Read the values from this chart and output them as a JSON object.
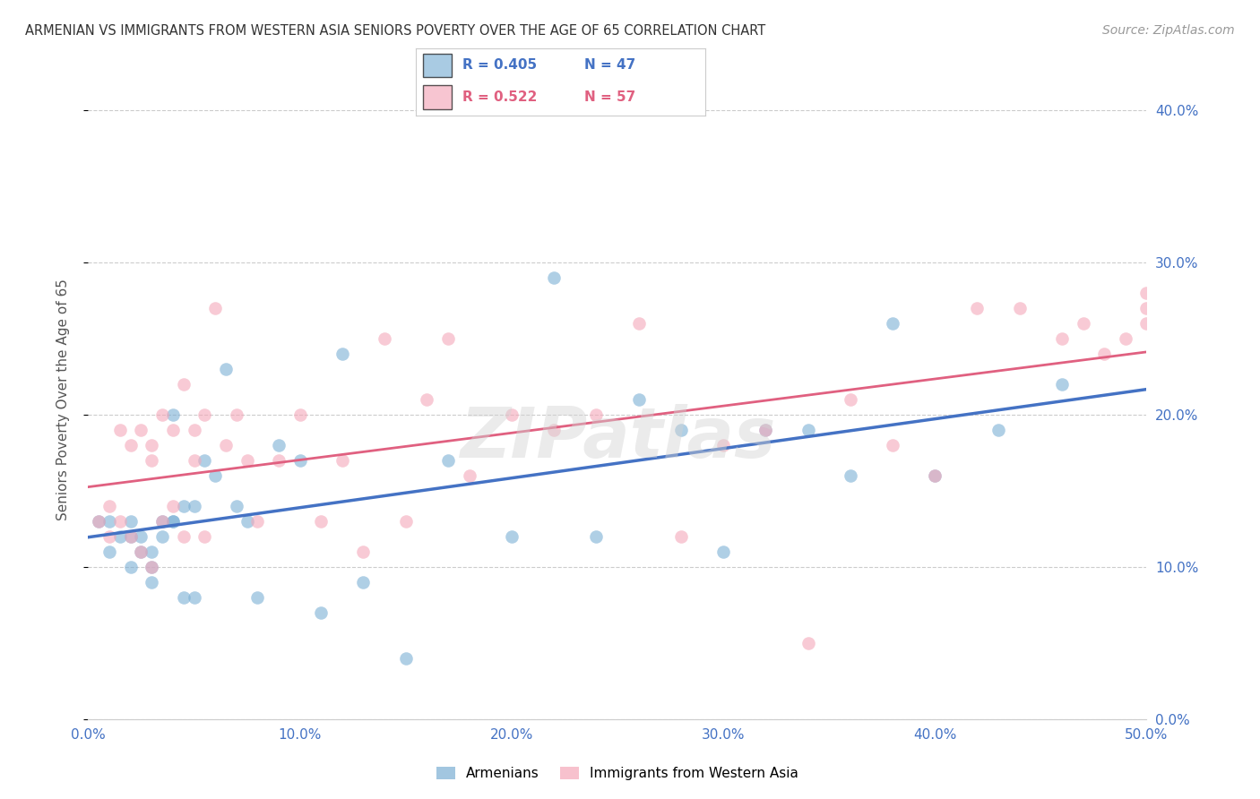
{
  "title": "ARMENIAN VS IMMIGRANTS FROM WESTERN ASIA SENIORS POVERTY OVER THE AGE OF 65 CORRELATION CHART",
  "source": "Source: ZipAtlas.com",
  "ylabel": "Seniors Poverty Over the Age of 65",
  "xlim": [
    0.0,
    0.5
  ],
  "ylim": [
    0.0,
    0.42
  ],
  "yticks": [
    0.0,
    0.1,
    0.2,
    0.3,
    0.4
  ],
  "xticks": [
    0.0,
    0.1,
    0.2,
    0.3,
    0.4,
    0.5
  ],
  "legend_labels": [
    "Armenians",
    "Immigrants from Western Asia"
  ],
  "legend_R": [
    "R = 0.405",
    "R = 0.522"
  ],
  "legend_N": [
    "N = 47",
    "N = 57"
  ],
  "blue_color": "#7BAFD4",
  "pink_color": "#F4A7B9",
  "blue_line_color": "#4472C4",
  "pink_line_color": "#E06080",
  "watermark": "ZIPatlas",
  "blue_scatter_x": [
    0.005,
    0.01,
    0.01,
    0.015,
    0.02,
    0.02,
    0.02,
    0.025,
    0.025,
    0.03,
    0.03,
    0.03,
    0.035,
    0.035,
    0.04,
    0.04,
    0.04,
    0.045,
    0.045,
    0.05,
    0.05,
    0.055,
    0.06,
    0.065,
    0.07,
    0.075,
    0.08,
    0.09,
    0.1,
    0.11,
    0.12,
    0.13,
    0.15,
    0.17,
    0.2,
    0.22,
    0.24,
    0.26,
    0.28,
    0.3,
    0.32,
    0.34,
    0.36,
    0.38,
    0.4,
    0.43,
    0.46
  ],
  "blue_scatter_y": [
    0.13,
    0.13,
    0.11,
    0.12,
    0.13,
    0.12,
    0.1,
    0.12,
    0.11,
    0.11,
    0.1,
    0.09,
    0.12,
    0.13,
    0.2,
    0.13,
    0.13,
    0.14,
    0.08,
    0.14,
    0.08,
    0.17,
    0.16,
    0.23,
    0.14,
    0.13,
    0.08,
    0.18,
    0.17,
    0.07,
    0.24,
    0.09,
    0.04,
    0.17,
    0.12,
    0.29,
    0.12,
    0.21,
    0.19,
    0.11,
    0.19,
    0.19,
    0.16,
    0.26,
    0.16,
    0.19,
    0.22
  ],
  "pink_scatter_x": [
    0.005,
    0.01,
    0.01,
    0.015,
    0.015,
    0.02,
    0.02,
    0.025,
    0.025,
    0.03,
    0.03,
    0.03,
    0.035,
    0.035,
    0.04,
    0.04,
    0.045,
    0.045,
    0.05,
    0.05,
    0.055,
    0.055,
    0.06,
    0.065,
    0.07,
    0.075,
    0.08,
    0.09,
    0.1,
    0.11,
    0.12,
    0.13,
    0.14,
    0.15,
    0.16,
    0.17,
    0.18,
    0.2,
    0.22,
    0.24,
    0.26,
    0.28,
    0.3,
    0.32,
    0.34,
    0.36,
    0.38,
    0.4,
    0.42,
    0.44,
    0.46,
    0.47,
    0.48,
    0.49,
    0.5,
    0.5,
    0.5
  ],
  "pink_scatter_y": [
    0.13,
    0.14,
    0.12,
    0.19,
    0.13,
    0.18,
    0.12,
    0.19,
    0.11,
    0.18,
    0.17,
    0.1,
    0.2,
    0.13,
    0.19,
    0.14,
    0.22,
    0.12,
    0.19,
    0.17,
    0.2,
    0.12,
    0.27,
    0.18,
    0.2,
    0.17,
    0.13,
    0.17,
    0.2,
    0.13,
    0.17,
    0.11,
    0.25,
    0.13,
    0.21,
    0.25,
    0.16,
    0.2,
    0.19,
    0.2,
    0.26,
    0.12,
    0.18,
    0.19,
    0.05,
    0.21,
    0.18,
    0.16,
    0.27,
    0.27,
    0.25,
    0.26,
    0.24,
    0.25,
    0.26,
    0.27,
    0.28
  ]
}
